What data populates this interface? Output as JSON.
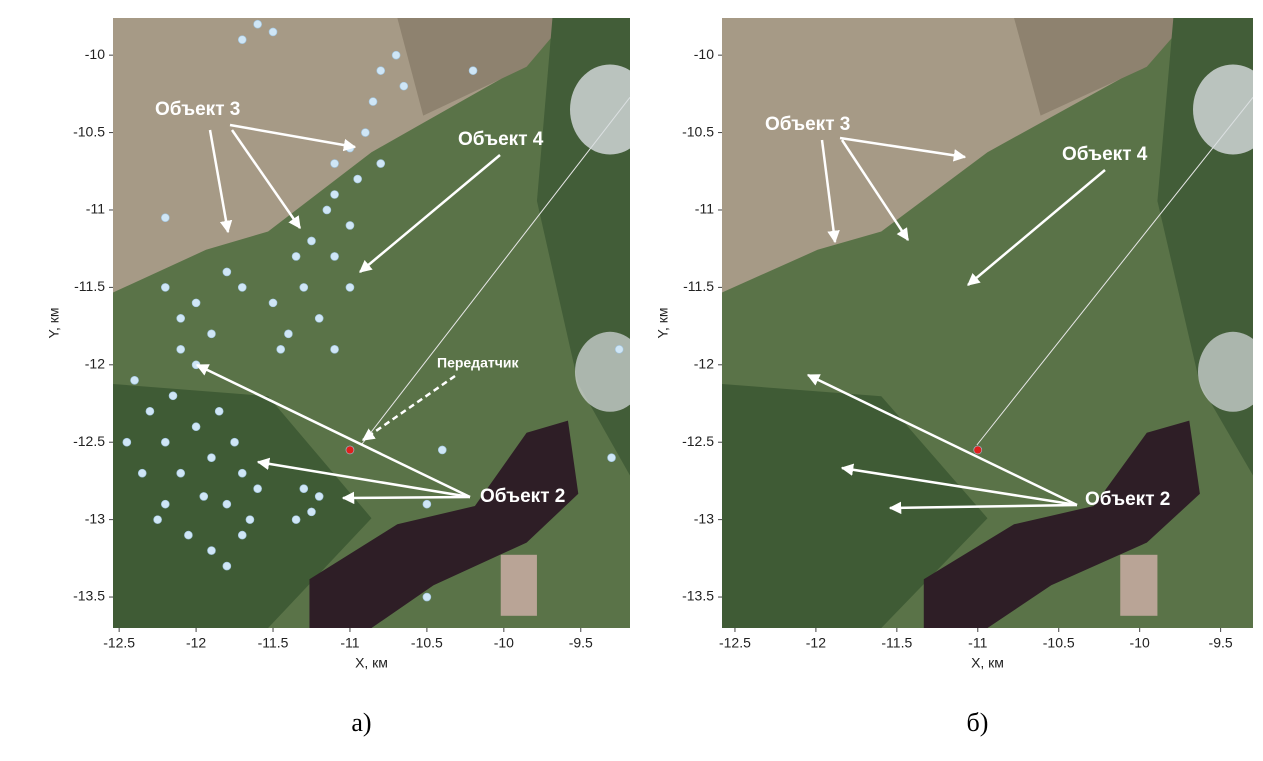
{
  "chart_data": [
    {
      "type": "scatter",
      "caption": "а)",
      "xlabel": "X, км",
      "ylabel": "Y, км",
      "xlim": [
        -12.54,
        -9.18
      ],
      "ylim": [
        -13.7,
        -9.76
      ],
      "xticks": [
        -12.5,
        -12,
        -11.5,
        -11,
        -10.5,
        -10,
        -9.5
      ],
      "yticks": [
        -13.5,
        -13,
        -12.5,
        -12,
        -11.5,
        -11,
        -10.5,
        -10
      ],
      "series": [
        {
          "color": "#cfe6f6",
          "x": [
            -12.4,
            -12.3,
            -12.2,
            -12.1,
            -12.0,
            -11.9,
            -11.8,
            -11.7,
            -11.9,
            -12.2,
            -12.35,
            -12.15,
            -12.0,
            -12.1,
            -11.85,
            -11.7,
            -11.6,
            -11.75,
            -12.45,
            -12.25,
            -11.95,
            -11.65,
            -12.05,
            -11.8,
            -11.3,
            -11.25,
            -11.2,
            -11.35,
            -12.2,
            -12.0,
            -11.8,
            -11.7,
            -12.1,
            -11.9,
            -11.5,
            -11.4,
            -11.3,
            -11.25,
            -11.2,
            -11.1,
            -11.0,
            -11.1,
            -11.35,
            -11.45,
            -11.1,
            -11.0,
            -10.9,
            -10.85,
            -10.8,
            -10.7,
            -10.65,
            -10.95,
            -10.8,
            -11.1,
            -11.15,
            -11.0,
            -11.6,
            -11.7,
            -11.5,
            -10.4,
            -10.5,
            -9.3,
            -9.25,
            -10.2,
            -12.2,
            -10.5
          ],
          "values": [
            -12.1,
            -12.3,
            -12.5,
            -12.7,
            -12.4,
            -12.6,
            -12.9,
            -13.1,
            -13.2,
            -12.9,
            -12.7,
            -12.2,
            -12.0,
            -11.9,
            -12.3,
            -12.7,
            -12.8,
            -12.5,
            -12.5,
            -13.0,
            -12.85,
            -13.0,
            -13.1,
            -13.3,
            -12.8,
            -12.95,
            -12.85,
            -13.0,
            -11.5,
            -11.6,
            -11.4,
            -11.5,
            -11.7,
            -11.8,
            -11.6,
            -11.8,
            -11.5,
            -11.2,
            -11.7,
            -11.9,
            -11.5,
            -11.3,
            -11.3,
            -11.9,
            -10.9,
            -10.6,
            -10.5,
            -10.3,
            -10.1,
            -10.0,
            -10.2,
            -10.8,
            -10.7,
            -10.7,
            -11.0,
            -11.1,
            -9.8,
            -9.9,
            -9.85,
            -12.55,
            -12.9,
            -12.6,
            -11.9,
            -10.1,
            -11.05,
            -13.5
          ]
        },
        {
          "color": "#e0201c",
          "x": [
            -11.0
          ],
          "values": [
            -12.55
          ]
        }
      ],
      "annotations": [
        "Объект 3",
        "Объект 4",
        "Передатчик",
        "Объект 2"
      ]
    },
    {
      "type": "scatter",
      "caption": "б)",
      "xlabel": "X, км",
      "ylabel": "Y, км",
      "xlim": [
        -12.58,
        -9.3
      ],
      "ylim": [
        -13.7,
        -9.76
      ],
      "xticks": [
        -12.5,
        -12,
        -11.5,
        -11,
        -10.5,
        -10,
        -9.5
      ],
      "yticks": [
        -13.5,
        -13,
        -12.5,
        -12,
        -11.5,
        -11,
        -10.5,
        -10
      ],
      "series": [
        {
          "color": "#e0201c",
          "x": [
            -11.0
          ],
          "values": [
            -12.55
          ]
        }
      ],
      "annotations": [
        "Объект 3",
        "Объект 4",
        "Объект 2"
      ]
    }
  ]
}
